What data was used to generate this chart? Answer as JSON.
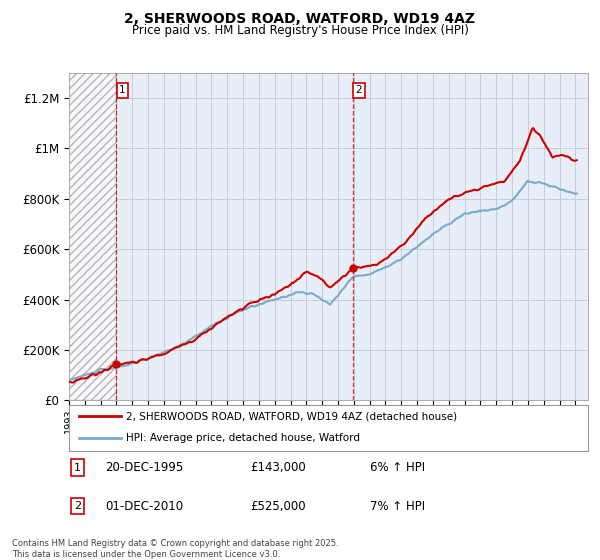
{
  "title": "2, SHERWOODS ROAD, WATFORD, WD19 4AZ",
  "subtitle": "Price paid vs. HM Land Registry's House Price Index (HPI)",
  "ylabel_ticks": [
    0,
    200000,
    400000,
    600000,
    800000,
    1000000,
    1200000
  ],
  "ylabel_labels": [
    "£0",
    "£200K",
    "£400K",
    "£600K",
    "£800K",
    "£1M",
    "£1.2M"
  ],
  "ylim": [
    0,
    1300000
  ],
  "xlim_start": 1993.0,
  "xlim_end": 2025.8,
  "sale1_date": 1995.97,
  "sale1_price": 143000,
  "sale1_label": "1",
  "sale2_date": 2010.92,
  "sale2_price": 525000,
  "sale2_label": "2",
  "hatch_end": 1995.97,
  "red_color": "#cc0000",
  "blue_color": "#7aabcc",
  "legend_line1": "2, SHERWOODS ROAD, WATFORD, WD19 4AZ (detached house)",
  "legend_line2": "HPI: Average price, detached house, Watford",
  "annotation1": "20-DEC-1995",
  "annotation1_price": "£143,000",
  "annotation1_hpi": "6% ↑ HPI",
  "annotation2": "01-DEC-2010",
  "annotation2_price": "£525,000",
  "annotation2_hpi": "7% ↑ HPI",
  "footer": "Contains HM Land Registry data © Crown copyright and database right 2025.\nThis data is licensed under the Open Government Licence v3.0.",
  "background_color": "#ffffff",
  "plot_bg_color": "#e8eef8",
  "grid_color": "#c8cdd8"
}
